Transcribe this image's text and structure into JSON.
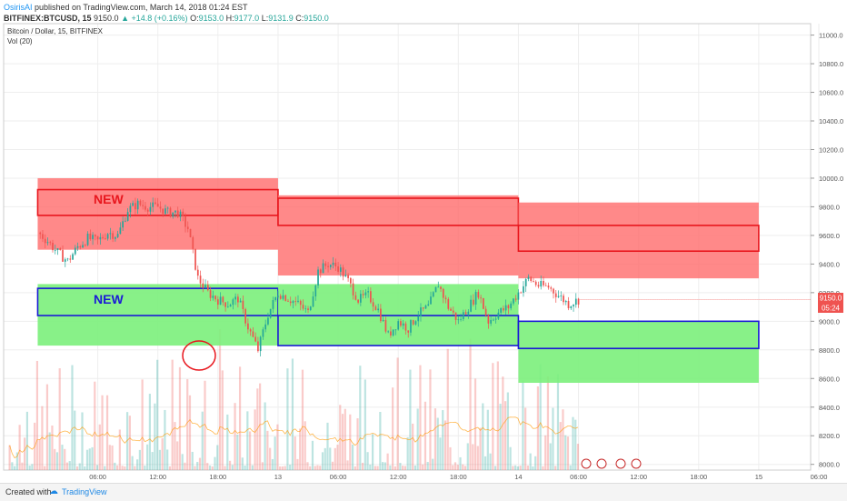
{
  "header": {
    "author": "OsirisAI",
    "published_text": "published on TradingView.com, March 14, 2018 01:24 EST",
    "symbol_line": "BITFINEX:BTCUSD, 15",
    "last": "9150.0",
    "change": "+14.8 (+0.16%)",
    "open_label": "O:",
    "open": "9153.0",
    "high_label": "H:",
    "high": "9177.0",
    "low_label": "L:",
    "low": "9131.9",
    "close_label": "C:",
    "close": "9150.0"
  },
  "legend": {
    "instrument": "Bitcoin / Dollar, 15, BITFINEX",
    "volume": "Vol (20)"
  },
  "price_badge": {
    "value": "9150.0",
    "timer": "05:24"
  },
  "annotations": {
    "new_red": "NEW",
    "new_blue": "NEW"
  },
  "footer": {
    "created_with": "Created with",
    "brand": "TradingView"
  },
  "colors": {
    "supply_fill": "#ff6f6f",
    "supply_border": "#e8161d",
    "demand_fill": "#7bf07b",
    "demand_border": "#1a1ad6",
    "up_candle": "#26a69a",
    "down_candle": "#ef5350",
    "badge": "#ef5350",
    "circle": "#e8161d"
  },
  "chart_data": {
    "type": "candlestick",
    "instrument": "Bitcoin / Dollar",
    "timeframe": "15",
    "exchange": "BITFINEX",
    "y_axis": {
      "range": [
        7960,
        11080
      ],
      "ticks": [
        "11000.0",
        "10800.0",
        "10600.0",
        "10400.0",
        "10200.0",
        "10000.0",
        "9800.0",
        "9600.0",
        "9400.0",
        "9200.0",
        "9000.0",
        "8800.0",
        "8600.0",
        "8400.0",
        "8200.0",
        "8000.0"
      ]
    },
    "x_axis": {
      "ticks": [
        {
          "label": "06:00",
          "h": 6
        },
        {
          "label": "12:00",
          "h": 12
        },
        {
          "label": "18:00",
          "h": 18
        },
        {
          "label": "13",
          "h": 24
        },
        {
          "label": "06:00",
          "h": 30
        },
        {
          "label": "12:00",
          "h": 36
        },
        {
          "label": "18:00",
          "h": 42
        },
        {
          "label": "14",
          "h": 48
        },
        {
          "label": "06:00",
          "h": 54
        },
        {
          "label": "12:00",
          "h": 60
        },
        {
          "label": "18:00",
          "h": 66
        },
        {
          "label": "15",
          "h": 72
        },
        {
          "label": "06:00",
          "h": 78
        }
      ]
    },
    "grid": true,
    "last_price": 9150.0,
    "price_path": [
      [
        0,
        9620
      ],
      [
        1,
        9560
      ],
      [
        2,
        9480
      ],
      [
        3,
        9420
      ],
      [
        4,
        9520
      ],
      [
        5,
        9580
      ],
      [
        6,
        9560
      ],
      [
        7,
        9620
      ],
      [
        8,
        9600
      ],
      [
        9,
        9780
      ],
      [
        10,
        9820
      ],
      [
        11,
        9800
      ],
      [
        12,
        9800
      ],
      [
        13,
        9760
      ],
      [
        14,
        9760
      ],
      [
        15,
        9650
      ],
      [
        16,
        9300
      ],
      [
        17,
        9200
      ],
      [
        18,
        9150
      ],
      [
        19,
        9120
      ],
      [
        20,
        9160
      ],
      [
        21,
        8960
      ],
      [
        22,
        8800
      ],
      [
        23,
        9050
      ],
      [
        24,
        9200
      ],
      [
        26,
        9120
      ],
      [
        27,
        9060
      ],
      [
        28,
        9350
      ],
      [
        29,
        9400
      ],
      [
        30,
        9380
      ],
      [
        31,
        9280
      ],
      [
        32,
        9150
      ],
      [
        33,
        9180
      ],
      [
        34,
        9080
      ],
      [
        35,
        8900
      ],
      [
        36,
        9000
      ],
      [
        37,
        8950
      ],
      [
        38,
        9050
      ],
      [
        39,
        9100
      ],
      [
        40,
        9260
      ],
      [
        41,
        9100
      ],
      [
        42,
        9000
      ],
      [
        43,
        9100
      ],
      [
        44,
        9200
      ],
      [
        45,
        9000
      ],
      [
        46,
        9060
      ],
      [
        47,
        9100
      ],
      [
        48,
        9200
      ],
      [
        49,
        9300
      ],
      [
        50,
        9250
      ],
      [
        51,
        9240
      ],
      [
        52,
        9180
      ],
      [
        53,
        9120
      ],
      [
        54,
        9150
      ]
    ],
    "zones": [
      {
        "name": "supply",
        "x": [
          0,
          24
        ],
        "fill": [
          9500,
          10000
        ],
        "box": [
          9740,
          9920
        ]
      },
      {
        "name": "supply",
        "x": [
          24,
          48
        ],
        "fill": [
          9320,
          9880
        ],
        "box": [
          9670,
          9860
        ]
      },
      {
        "name": "supply",
        "x": [
          48,
          72
        ],
        "fill": [
          9300,
          9830
        ],
        "box": [
          9490,
          9670
        ]
      },
      {
        "name": "demand",
        "x": [
          0,
          24
        ],
        "fill": [
          8830,
          9260
        ],
        "box": [
          9040,
          9230
        ]
      },
      {
        "name": "demand",
        "x": [
          24,
          48
        ],
        "fill": [
          8830,
          9260
        ],
        "box": [
          8830,
          9040
        ]
      },
      {
        "name": "demand",
        "x": [
          48,
          72
        ],
        "fill": [
          8570,
          9000
        ],
        "box": [
          8810,
          9000
        ]
      }
    ],
    "volume": {
      "period": 20
    }
  }
}
